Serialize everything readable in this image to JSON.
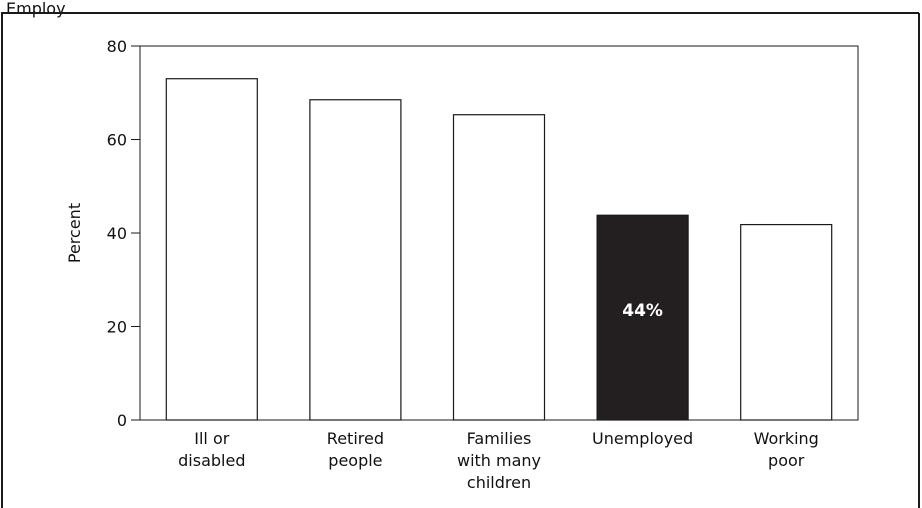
{
  "header_fragment": "Employ",
  "chart_data": {
    "type": "bar",
    "categories": [
      [
        "Ill or",
        "disabled"
      ],
      [
        "Retired",
        "people"
      ],
      [
        "Families",
        "with many",
        "children"
      ],
      [
        "Unemployed"
      ],
      [
        "Working",
        "poor"
      ]
    ],
    "values": [
      73,
      68.5,
      65.3,
      43.8,
      41.8
    ],
    "highlight_index": 3,
    "highlight_label": "44%",
    "title": "",
    "xlabel": "",
    "ylabel": "Percent",
    "ylim": [
      0,
      80
    ],
    "yticks": [
      0,
      20,
      40,
      60,
      80
    ],
    "colors": {
      "bar_fill": "#ffffff",
      "bar_stroke": "#1a1a1a",
      "highlight_fill": "#231f20",
      "highlight_label": "#ffffff",
      "axis": "#1a1a1a",
      "frame": "#1a1a1a"
    },
    "grid": false,
    "legend": "none"
  }
}
